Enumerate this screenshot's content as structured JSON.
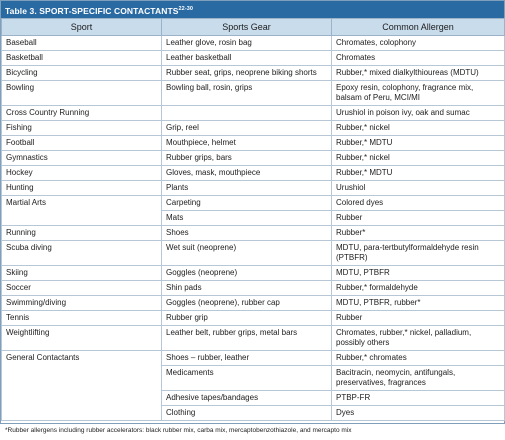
{
  "header": {
    "title": "Table 3. SPORT-SPECIFIC CONTACTANTS",
    "reference": "22-30"
  },
  "table": {
    "columns": [
      "Sport",
      "Sports Gear",
      "Common Allergen"
    ],
    "groups": [
      {
        "sport": "Baseball",
        "items": [
          {
            "gear": "Leather glove, rosin bag",
            "allergen": "Chromates, colophony"
          }
        ]
      },
      {
        "sport": "Basketball",
        "items": [
          {
            "gear": "Leather basketball",
            "allergen": "Chromates"
          }
        ]
      },
      {
        "sport": "Bicycling",
        "items": [
          {
            "gear": "Rubber seat, grips, neoprene biking shorts",
            "allergen": "Rubber,* mixed dialkylthioureas (MDTU)"
          }
        ]
      },
      {
        "sport": "Bowling",
        "items": [
          {
            "gear": "Bowling ball, rosin, grips",
            "allergen": "Epoxy resin, colophony, fragrance mix, balsam of Peru, MCI/MI"
          }
        ]
      },
      {
        "sport": "Cross Country Running",
        "items": [
          {
            "allergen": "Urushiol in poison ivy, oak and sumac"
          }
        ]
      },
      {
        "sport": "Fishing",
        "items": [
          {
            "gear": "Grip, reel",
            "allergen": "Rubber,* nickel"
          }
        ]
      },
      {
        "sport": "Football",
        "items": [
          {
            "gear": "Mouthpiece, helmet",
            "allergen": "Rubber,* MDTU"
          }
        ]
      },
      {
        "sport": "Gymnastics",
        "items": [
          {
            "gear": "Rubber grips, bars",
            "allergen": "Rubber,* nickel"
          }
        ]
      },
      {
        "sport": "Hockey",
        "items": [
          {
            "gear": "Gloves, mask, mouthpiece",
            "allergen": "Rubber,* MDTU"
          }
        ]
      },
      {
        "sport": "Hunting",
        "items": [
          {
            "gear": "Plants",
            "allergen": "Urushiol"
          }
        ]
      },
      {
        "sport": "Martial Arts",
        "items": [
          {
            "gear": "Carpeting",
            "allergen": "Colored dyes"
          },
          {
            "gear": "Mats",
            "allergen": "Rubber"
          }
        ]
      },
      {
        "sport": "Running",
        "items": [
          {
            "gear": "Shoes",
            "allergen": "Rubber*"
          }
        ]
      },
      {
        "sport": "Scuba diving",
        "items": [
          {
            "gear": "Wet suit (neoprene)",
            "allergen": "MDTU, para-tertbutylformaldehyde resin (PTBFR)"
          }
        ]
      },
      {
        "sport": "Skiing",
        "items": [
          {
            "gear": "Goggles (neoprene)",
            "allergen": "MDTU, PTBFR"
          }
        ]
      },
      {
        "sport": "Soccer",
        "items": [
          {
            "gear": "Shin pads",
            "allergen": "Rubber,* formaldehyde"
          }
        ]
      },
      {
        "sport": "Swimming/diving",
        "items": [
          {
            "gear": "Goggles (neoprene), rubber cap",
            "allergen": "MDTU, PTBFR, rubber*"
          }
        ]
      },
      {
        "sport": "Tennis",
        "items": [
          {
            "gear": "Rubber grip",
            "allergen": "Rubber"
          }
        ]
      },
      {
        "sport": "Weightlifting",
        "items": [
          {
            "gear": "Leather belt, rubber grips, metal bars",
            "allergen": "Chromates, rubber,* nickel, palladium, possibly others"
          }
        ]
      },
      {
        "sport": "General Contactants",
        "items": [
          {
            "gear": "Shoes – rubber, leather",
            "allergen": "Rubber,* chromates"
          },
          {
            "gear": "Medicaments",
            "allergen": "Bacitracin, neomycin, antifungals, preservatives, fragrances"
          },
          {
            "gear": "Adhesive tapes/bandages",
            "allergen": "PTBP-FR"
          },
          {
            "gear": "Clothing",
            "allergen": "Dyes"
          }
        ]
      }
    ]
  },
  "footnote": "*Rubber allergens including rubber accelerators: black rubber mix, carba mix, mercaptobenzothiazole, and mercapto mix"
}
